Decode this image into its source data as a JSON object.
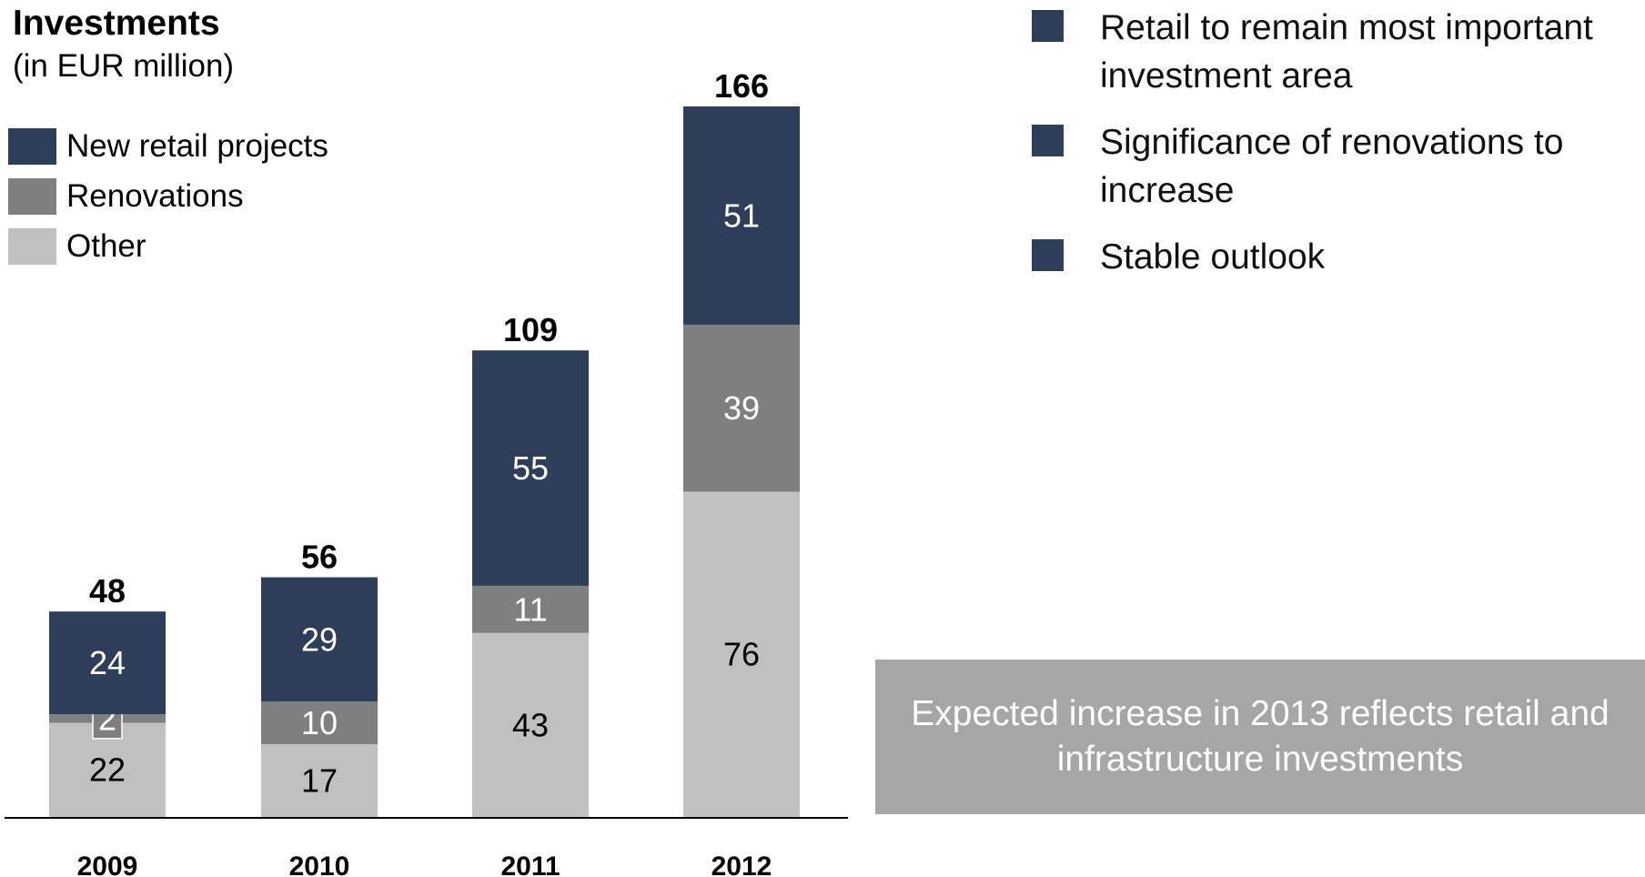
{
  "header": {
    "title": "Investments",
    "subtitle": "(in EUR million)"
  },
  "legend": [
    {
      "label": "New retail projects",
      "color": "#2c3e58"
    },
    {
      "label": "Renovations",
      "color": "#7f7f7f"
    },
    {
      "label": "Other",
      "color": "#c0c0c0"
    }
  ],
  "chart_data": {
    "type": "bar",
    "stacked": true,
    "categories": [
      "2009",
      "2010",
      "2011",
      "2012"
    ],
    "series": [
      {
        "name": "Other",
        "color": "#c0c0c0",
        "label_color": "#000000",
        "values": [
          22,
          17,
          43,
          76
        ]
      },
      {
        "name": "Renovations",
        "color": "#7f7f7f",
        "label_color": "#ffffff",
        "values": [
          2,
          10,
          11,
          39
        ]
      },
      {
        "name": "New retail projects",
        "color": "#2c3e58",
        "label_color": "#ffffff",
        "values": [
          24,
          29,
          55,
          51
        ]
      }
    ],
    "totals": [
      48,
      56,
      109,
      166
    ],
    "ylim": [
      0,
      170
    ],
    "grid": false,
    "legend_position": "top-left"
  },
  "bullets": [
    "Retail to remain most important investment area",
    "Significance of renovations to increase",
    "Stable outlook"
  ],
  "callout": {
    "text": "Expected increase in 2013 reflects retail and infrastructure investments"
  }
}
